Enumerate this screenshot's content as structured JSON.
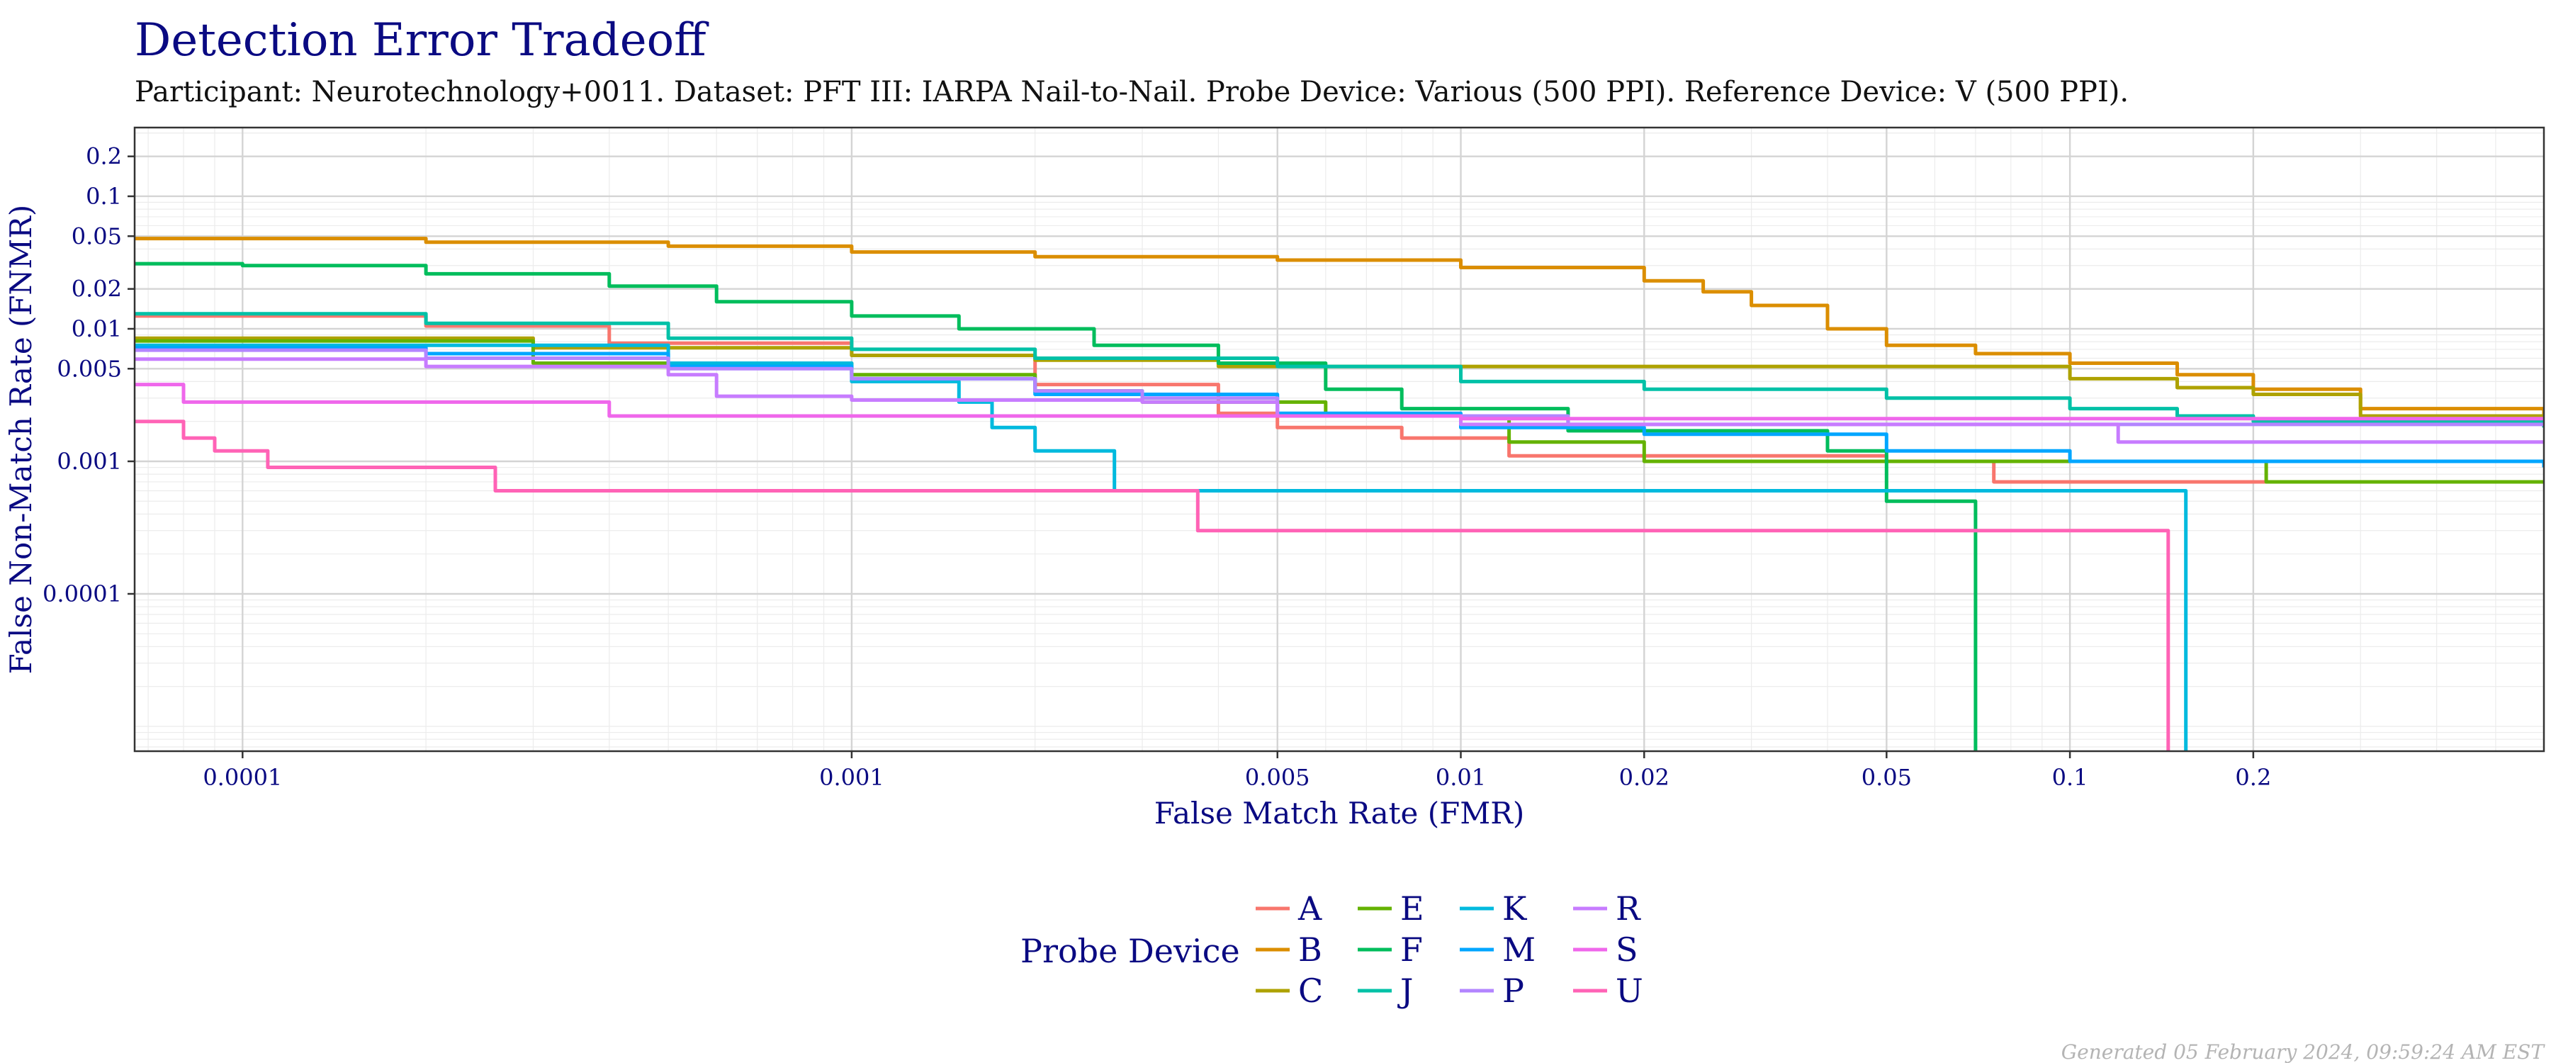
{
  "chart_data": {
    "type": "line",
    "title": "Detection Error Tradeoff",
    "subtitle": "Participant: Neurotechnology+0011. Dataset: PFT III: IARPA Nail-to-Nail. Probe Device: Various (500 PPI). Reference Device: V (500 PPI).",
    "xlabel": "False Match Rate (FMR)",
    "ylabel": "False Non-Match Rate (FNMR)",
    "x_scale": "log",
    "y_scale": "log",
    "xlim": [
      6.65e-05,
      0.6
    ],
    "ylim": [
      6.5e-06,
      0.33
    ],
    "x_ticks": [
      {
        "value": 0.0001,
        "label": "0.0001"
      },
      {
        "value": 0.001,
        "label": "0.001"
      },
      {
        "value": 0.005,
        "label": "0.005"
      },
      {
        "value": 0.01,
        "label": "0.01"
      },
      {
        "value": 0.02,
        "label": "0.02"
      },
      {
        "value": 0.05,
        "label": "0.05"
      },
      {
        "value": 0.1,
        "label": "0.1"
      },
      {
        "value": 0.2,
        "label": "0.2"
      }
    ],
    "y_ticks": [
      {
        "value": 0.0001,
        "label": "0.0001"
      },
      {
        "value": 0.001,
        "label": "0.001"
      },
      {
        "value": 0.005,
        "label": "0.005"
      },
      {
        "value": 0.01,
        "label": "0.01"
      },
      {
        "value": 0.02,
        "label": "0.02"
      },
      {
        "value": 0.05,
        "label": "0.05"
      },
      {
        "value": 0.1,
        "label": "0.1"
      },
      {
        "value": 0.2,
        "label": "0.2"
      }
    ],
    "grid": true,
    "legend": {
      "title": "Probe Device",
      "position": "bottom"
    },
    "series": [
      {
        "name": "A",
        "color": "#F8766D",
        "points": [
          [
            6.65e-05,
            0.0125
          ],
          [
            0.0002,
            0.0105
          ],
          [
            0.0004,
            0.0078
          ],
          [
            0.001,
            0.0063
          ],
          [
            0.002,
            0.0038
          ],
          [
            0.004,
            0.0023
          ],
          [
            0.005,
            0.0018
          ],
          [
            0.008,
            0.0015
          ],
          [
            0.012,
            0.0011
          ],
          [
            0.02,
            0.0011
          ],
          [
            0.05,
            0.001
          ],
          [
            0.075,
            0.001
          ],
          [
            0.075,
            0.0007
          ],
          [
            0.6,
            0.0007
          ]
        ]
      },
      {
        "name": "B",
        "color": "#DB8E00",
        "points": [
          [
            6.65e-05,
            0.048
          ],
          [
            0.0002,
            0.045
          ],
          [
            0.0005,
            0.042
          ],
          [
            0.001,
            0.038
          ],
          [
            0.002,
            0.035
          ],
          [
            0.005,
            0.033
          ],
          [
            0.01,
            0.029
          ],
          [
            0.02,
            0.023
          ],
          [
            0.025,
            0.019
          ],
          [
            0.03,
            0.015
          ],
          [
            0.04,
            0.01
          ],
          [
            0.05,
            0.0075
          ],
          [
            0.07,
            0.0065
          ],
          [
            0.1,
            0.0055
          ],
          [
            0.15,
            0.0045
          ],
          [
            0.2,
            0.0035
          ],
          [
            0.3,
            0.0025
          ],
          [
            0.6,
            0.002
          ]
        ]
      },
      {
        "name": "C",
        "color": "#AEA200",
        "points": [
          [
            6.65e-05,
            0.0085
          ],
          [
            0.0003,
            0.0072
          ],
          [
            0.001,
            0.0063
          ],
          [
            0.002,
            0.0058
          ],
          [
            0.004,
            0.0052
          ],
          [
            0.05,
            0.0052
          ],
          [
            0.1,
            0.0042
          ],
          [
            0.15,
            0.0036
          ],
          [
            0.2,
            0.0032
          ],
          [
            0.3,
            0.0022
          ],
          [
            0.6,
            0.0019
          ]
        ]
      },
      {
        "name": "E",
        "color": "#64B200",
        "points": [
          [
            6.65e-05,
            0.0081
          ],
          [
            0.0003,
            0.0055
          ],
          [
            0.001,
            0.0045
          ],
          [
            0.002,
            0.0034
          ],
          [
            0.003,
            0.0028
          ],
          [
            0.006,
            0.0022
          ],
          [
            0.012,
            0.0014
          ],
          [
            0.02,
            0.001
          ],
          [
            0.05,
            0.001
          ],
          [
            0.21,
            0.001
          ],
          [
            0.21,
            0.0007
          ],
          [
            0.6,
            0.0007
          ]
        ]
      },
      {
        "name": "F",
        "color": "#00BD5C",
        "points": [
          [
            6.65e-05,
            0.031
          ],
          [
            0.0001,
            0.03
          ],
          [
            0.0002,
            0.026
          ],
          [
            0.0004,
            0.021
          ],
          [
            0.0006,
            0.016
          ],
          [
            0.001,
            0.0125
          ],
          [
            0.0015,
            0.01
          ],
          [
            0.0025,
            0.0075
          ],
          [
            0.004,
            0.0055
          ],
          [
            0.006,
            0.0035
          ],
          [
            0.008,
            0.0025
          ],
          [
            0.015,
            0.0017
          ],
          [
            0.04,
            0.0012
          ],
          [
            0.05,
            0.0012
          ],
          [
            0.05,
            0.0005
          ],
          [
            0.07,
            0.0005
          ],
          [
            0.07,
            6.5e-06
          ]
        ]
      },
      {
        "name": "J",
        "color": "#00C1A7",
        "points": [
          [
            6.65e-05,
            0.013
          ],
          [
            0.0002,
            0.011
          ],
          [
            0.0005,
            0.0085
          ],
          [
            0.001,
            0.007
          ],
          [
            0.002,
            0.006
          ],
          [
            0.005,
            0.0052
          ],
          [
            0.01,
            0.004
          ],
          [
            0.02,
            0.0035
          ],
          [
            0.05,
            0.003
          ],
          [
            0.1,
            0.0025
          ],
          [
            0.15,
            0.0022
          ],
          [
            0.2,
            0.002
          ],
          [
            0.6,
            0.0018
          ]
        ]
      },
      {
        "name": "K",
        "color": "#00BADE",
        "points": [
          [
            6.65e-05,
            0.0075
          ],
          [
            0.0005,
            0.0055
          ],
          [
            0.001,
            0.004
          ],
          [
            0.0015,
            0.0028
          ],
          [
            0.0017,
            0.0018
          ],
          [
            0.002,
            0.0012
          ],
          [
            0.0027,
            0.0012
          ],
          [
            0.0027,
            0.0006
          ],
          [
            0.155,
            0.0006
          ],
          [
            0.155,
            6.5e-06
          ]
        ]
      },
      {
        "name": "M",
        "color": "#00A6FF",
        "points": [
          [
            6.65e-05,
            0.0072
          ],
          [
            0.0002,
            0.0065
          ],
          [
            0.0005,
            0.0052
          ],
          [
            0.001,
            0.0042
          ],
          [
            0.002,
            0.0032
          ],
          [
            0.005,
            0.0023
          ],
          [
            0.01,
            0.0018
          ],
          [
            0.02,
            0.0016
          ],
          [
            0.05,
            0.0012
          ],
          [
            0.1,
            0.001
          ],
          [
            0.6,
            0.0009
          ]
        ]
      },
      {
        "name": "P",
        "color": "#B385FF",
        "points": [
          [
            6.65e-05,
            0.0069
          ],
          [
            0.0002,
            0.006
          ],
          [
            0.0005,
            0.005
          ],
          [
            0.001,
            0.0042
          ],
          [
            0.002,
            0.0034
          ],
          [
            0.003,
            0.003
          ],
          [
            0.005,
            0.0022
          ],
          [
            0.015,
            0.0019
          ],
          [
            0.05,
            0.0019
          ],
          [
            0.6,
            0.0019
          ]
        ]
      },
      {
        "name": "R",
        "color": "#C77CFF",
        "points": [
          [
            6.65e-05,
            0.0059
          ],
          [
            0.0002,
            0.0052
          ],
          [
            0.0005,
            0.0045
          ],
          [
            0.0006,
            0.0031
          ],
          [
            0.001,
            0.0029
          ],
          [
            0.003,
            0.0028
          ],
          [
            0.005,
            0.0022
          ],
          [
            0.01,
            0.0019
          ],
          [
            0.05,
            0.0019
          ],
          [
            0.12,
            0.0019
          ],
          [
            0.12,
            0.0014
          ],
          [
            0.6,
            0.0014
          ]
        ]
      },
      {
        "name": "S",
        "color": "#EF67EB",
        "points": [
          [
            6.65e-05,
            0.0038
          ],
          [
            8e-05,
            0.0036
          ],
          [
            8e-05,
            0.0028
          ],
          [
            0.00012,
            0.0028
          ],
          [
            0.0004,
            0.0027
          ],
          [
            0.0004,
            0.0022
          ],
          [
            0.01,
            0.0021
          ],
          [
            0.02,
            0.0021
          ],
          [
            0.05,
            0.0021
          ],
          [
            0.6,
            0.0021
          ]
        ]
      },
      {
        "name": "U",
        "color": "#FF63B6",
        "points": [
          [
            6.65e-05,
            0.002
          ],
          [
            8e-05,
            0.0019
          ],
          [
            8e-05,
            0.0015
          ],
          [
            9e-05,
            0.0012
          ],
          [
            0.00011,
            0.0012
          ],
          [
            0.00011,
            0.0009
          ],
          [
            0.00026,
            0.0009
          ],
          [
            0.00026,
            0.0006
          ],
          [
            0.0037,
            0.0006
          ],
          [
            0.0037,
            0.0003
          ],
          [
            0.145,
            0.0003
          ],
          [
            0.145,
            6.5e-06
          ]
        ]
      }
    ]
  },
  "footer": {
    "generated": "Generated 05 February 2024, 09:59:24 AM EST"
  }
}
